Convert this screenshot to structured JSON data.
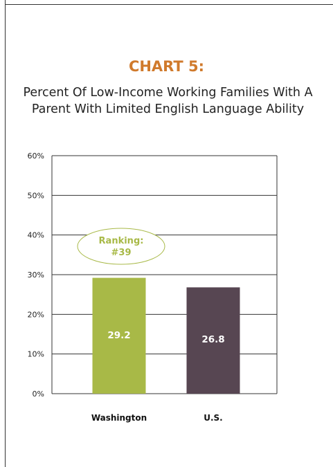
{
  "heading": "CHART 5:",
  "chart_data": {
    "type": "bar",
    "title": "Percent Of Low-Income Working Families With A Parent With Limited English Language Ability",
    "categories": [
      "Washington",
      "U.S."
    ],
    "values": [
      29.2,
      26.8
    ],
    "data_labels": [
      "29.2",
      "26.8"
    ],
    "ylim": [
      0,
      60
    ],
    "y_ticks": [
      0,
      10,
      20,
      30,
      40,
      50,
      60
    ],
    "y_tick_labels": [
      "0%",
      "10%",
      "20%",
      "30%",
      "40%",
      "50%",
      "60%"
    ],
    "grid": true,
    "bar_colors": [
      "#a8b947",
      "#574652"
    ],
    "annotation": {
      "text_line1": "Ranking:",
      "text_line2": "#39",
      "color": "#a8b947",
      "category": "Washington"
    }
  }
}
